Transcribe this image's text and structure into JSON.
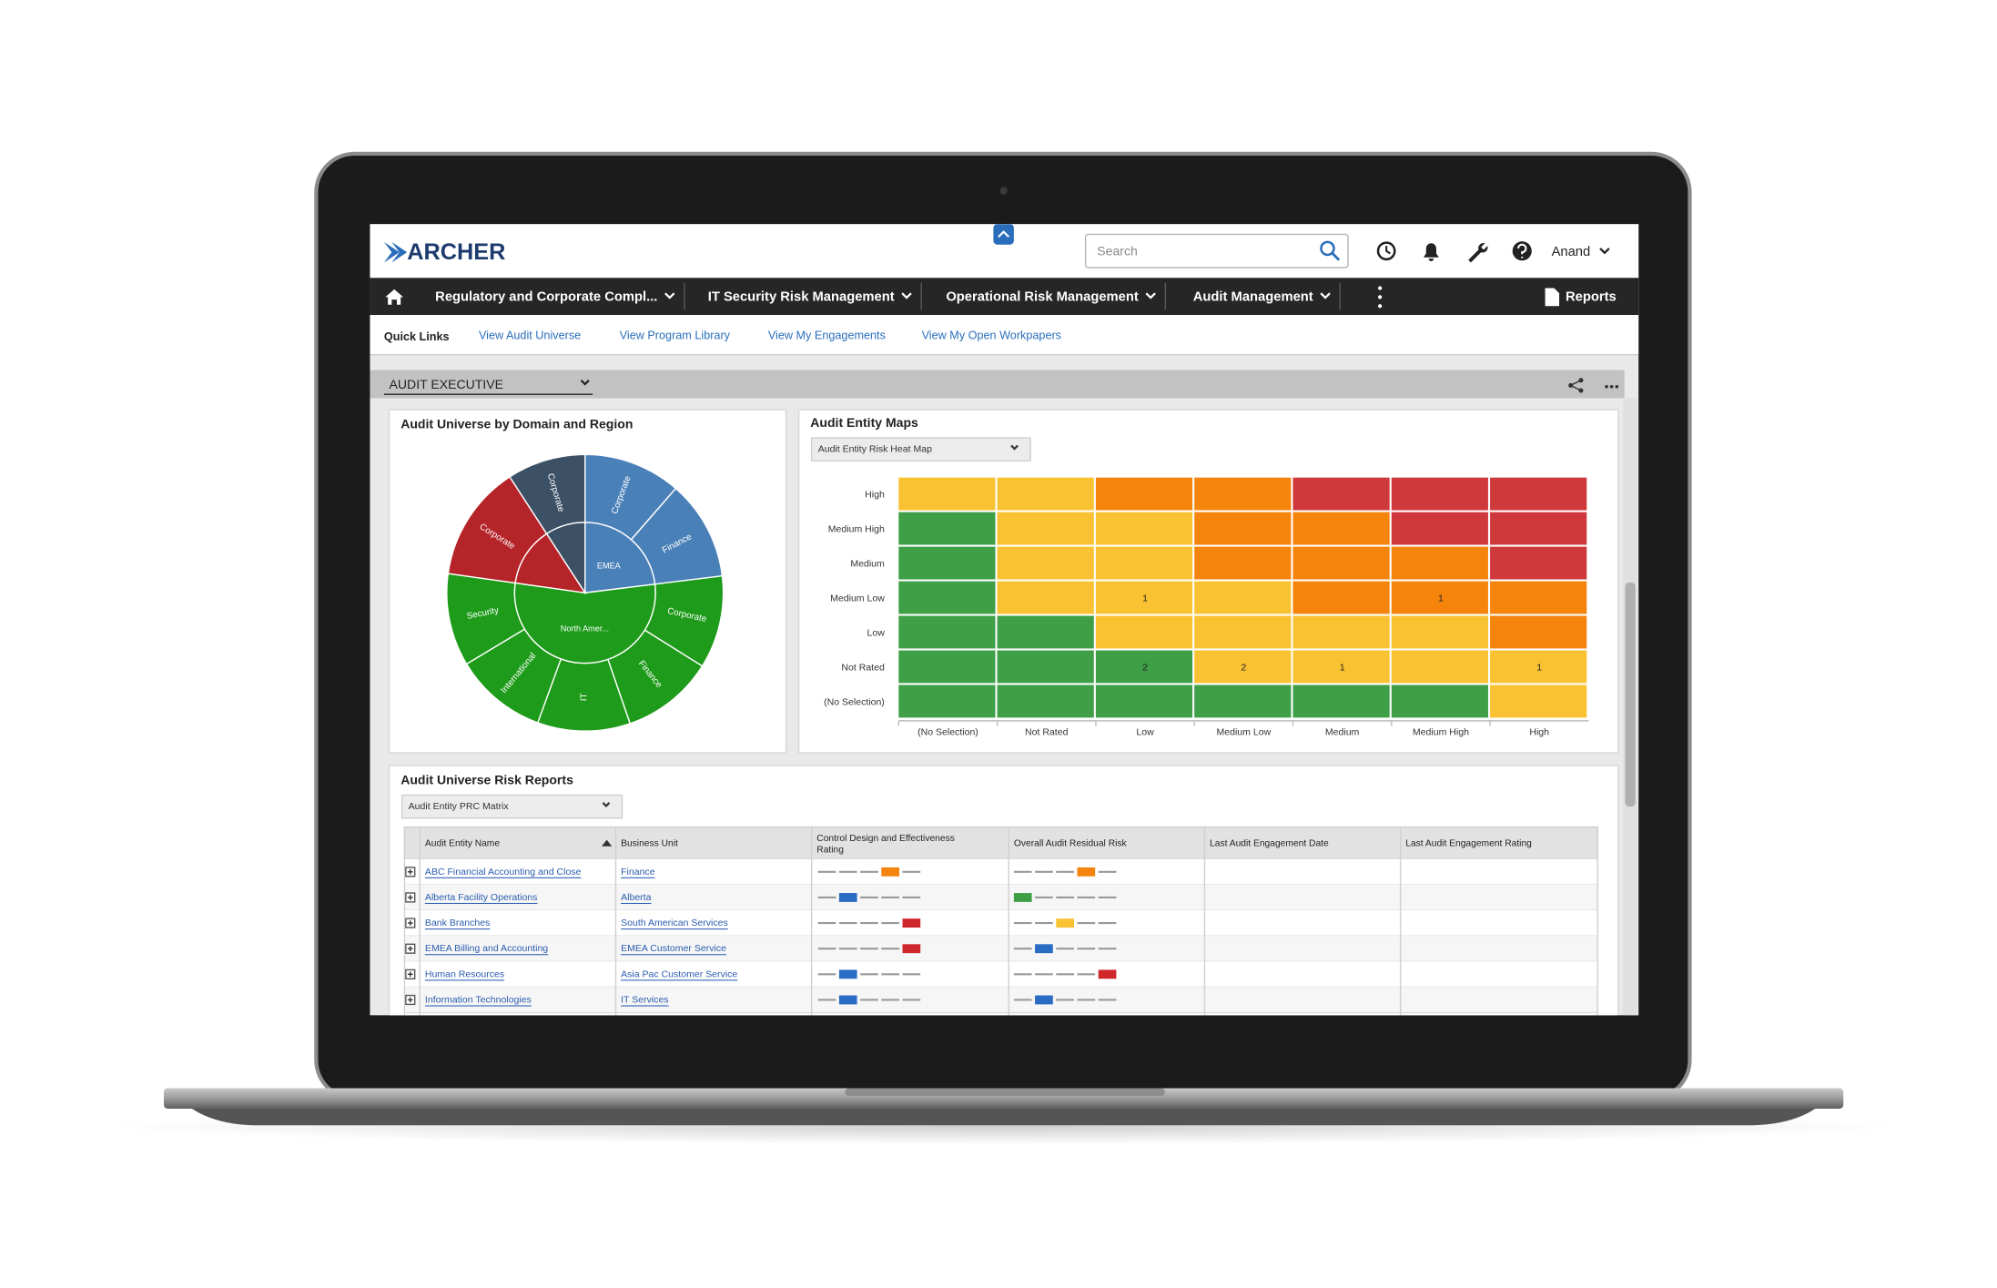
{
  "header": {
    "logo": "ARCHER",
    "search_placeholder": "Search",
    "user": "Anand"
  },
  "nav": {
    "items": [
      "Regulatory and Corporate Compl...",
      "IT Security Risk Management",
      "Operational Risk Management",
      "Audit Management"
    ],
    "reports": "Reports"
  },
  "quick_links": {
    "label": "Quick Links",
    "links": [
      "View Audit Universe",
      "View Program Library",
      "View My Engagements",
      "View My Open Workpapers"
    ]
  },
  "workspace": {
    "title": "AUDIT EXECUTIVE"
  },
  "sunburst": {
    "title": "Audit Universe by Domain and Region",
    "inner": [
      {
        "label": "EMEA",
        "value": 83,
        "color": "#4a80b8"
      },
      {
        "label": "North Amer...",
        "value": 195,
        "color": "#1e9b1a"
      },
      {
        "label": null,
        "value": 49,
        "color": "#b52428"
      },
      {
        "label": null,
        "value": 33,
        "color": "#3d5166"
      }
    ],
    "outer": [
      {
        "label": "Corporate",
        "value": 41,
        "color": "#4a80b8"
      },
      {
        "label": "Finance",
        "value": 42,
        "color": "#4a80b8"
      },
      {
        "label": "Corporate",
        "value": 39,
        "color": "#1e9b1a"
      },
      {
        "label": "Finance",
        "value": 39,
        "color": "#1e9b1a"
      },
      {
        "label": "IT",
        "value": 39,
        "color": "#1e9b1a"
      },
      {
        "label": "International",
        "value": 39,
        "color": "#1e9b1a"
      },
      {
        "label": "Security",
        "value": 39,
        "color": "#1e9b1a"
      },
      {
        "label": "Corporate",
        "value": 49,
        "color": "#b52428"
      },
      {
        "label": "Corporate",
        "value": 33,
        "color": "#3d5166"
      }
    ]
  },
  "heat_map": {
    "title": "Audit Entity Maps",
    "selector": "Audit Entity Risk Heat Map",
    "rows": [
      "High",
      "Medium High",
      "Medium",
      "Medium Low",
      "Low",
      "Not Rated",
      "(No Selection)"
    ],
    "columns": [
      "(No Selection)",
      "Not Rated",
      "Low",
      "Medium Low",
      "Medium",
      "Medium High",
      "High"
    ],
    "colors": [
      [
        "#f9c232",
        "#f9c232",
        "#f5840c",
        "#f5840c",
        "#d0393b",
        "#d0393b",
        "#d0393b"
      ],
      [
        "#3e9f47",
        "#f9c232",
        "#f9c232",
        "#f5840c",
        "#f5840c",
        "#d0393b",
        "#d0393b"
      ],
      [
        "#3e9f47",
        "#f9c232",
        "#f9c232",
        "#f5840c",
        "#f5840c",
        "#f5840c",
        "#d0393b"
      ],
      [
        "#3e9f47",
        "#f9c232",
        "#f9c232",
        "#f9c232",
        "#f5840c",
        "#f5840c",
        "#f5840c"
      ],
      [
        "#3e9f47",
        "#3e9f47",
        "#f9c232",
        "#f9c232",
        "#f9c232",
        "#f9c232",
        "#f5840c"
      ],
      [
        "#3e9f47",
        "#3e9f47",
        "#3e9f47",
        "#f9c232",
        "#f9c232",
        "#f9c232",
        "#f9c232"
      ],
      [
        "#3e9f47",
        "#3e9f47",
        "#3e9f47",
        "#3e9f47",
        "#3e9f47",
        "#3e9f47",
        "#f9c232"
      ]
    ],
    "counts": [
      [
        null,
        null,
        null,
        null,
        null,
        null,
        null
      ],
      [
        null,
        null,
        null,
        null,
        null,
        null,
        null
      ],
      [
        null,
        null,
        null,
        null,
        null,
        null,
        null
      ],
      [
        null,
        null,
        1,
        null,
        null,
        1,
        null
      ],
      [
        null,
        null,
        null,
        null,
        null,
        null,
        null
      ],
      [
        null,
        null,
        2,
        2,
        1,
        null,
        1
      ],
      [
        null,
        null,
        null,
        null,
        null,
        null,
        null
      ]
    ]
  },
  "risk_reports": {
    "title": "Audit Universe Risk Reports",
    "selector": "Audit Entity PRC Matrix",
    "columns": [
      "Audit Entity Name",
      "Business Unit",
      "Control Design and Effectiveness Rating",
      "Overall Audit Residual Risk",
      "Last Audit Engagement Date",
      "Last Audit Engagement Rating"
    ],
    "rows": [
      {
        "name": "ABC Financial Accounting and Close",
        "unit": "Finance",
        "control": {
          "level": 4,
          "color": "#f5840c"
        },
        "residual": {
          "level": 4,
          "color": "#f5840c"
        }
      },
      {
        "name": "Alberta Facility Operations",
        "unit": "Alberta",
        "control": {
          "level": 2,
          "color": "#2a6cc4"
        },
        "residual": {
          "level": 1,
          "color": "#3e9f47"
        }
      },
      {
        "name": "Bank Branches",
        "unit": "South American Services",
        "control": {
          "level": 5,
          "color": "#d0272d"
        },
        "residual": {
          "level": 3,
          "color": "#f9c232"
        }
      },
      {
        "name": "EMEA Billing and Accounting",
        "unit": "EMEA Customer Service",
        "control": {
          "level": 5,
          "color": "#d0272d"
        },
        "residual": {
          "level": 2,
          "color": "#2a6cc4"
        }
      },
      {
        "name": "Human Resources",
        "unit": "Asia Pac Customer Service",
        "control": {
          "level": 2,
          "color": "#2a6cc4"
        },
        "residual": {
          "level": 5,
          "color": "#d0272d"
        }
      },
      {
        "name": "Information Technologies",
        "unit": "IT Services",
        "control": {
          "level": 2,
          "color": "#2a6cc4"
        },
        "residual": {
          "level": 2,
          "color": "#2a6cc4"
        }
      }
    ]
  }
}
